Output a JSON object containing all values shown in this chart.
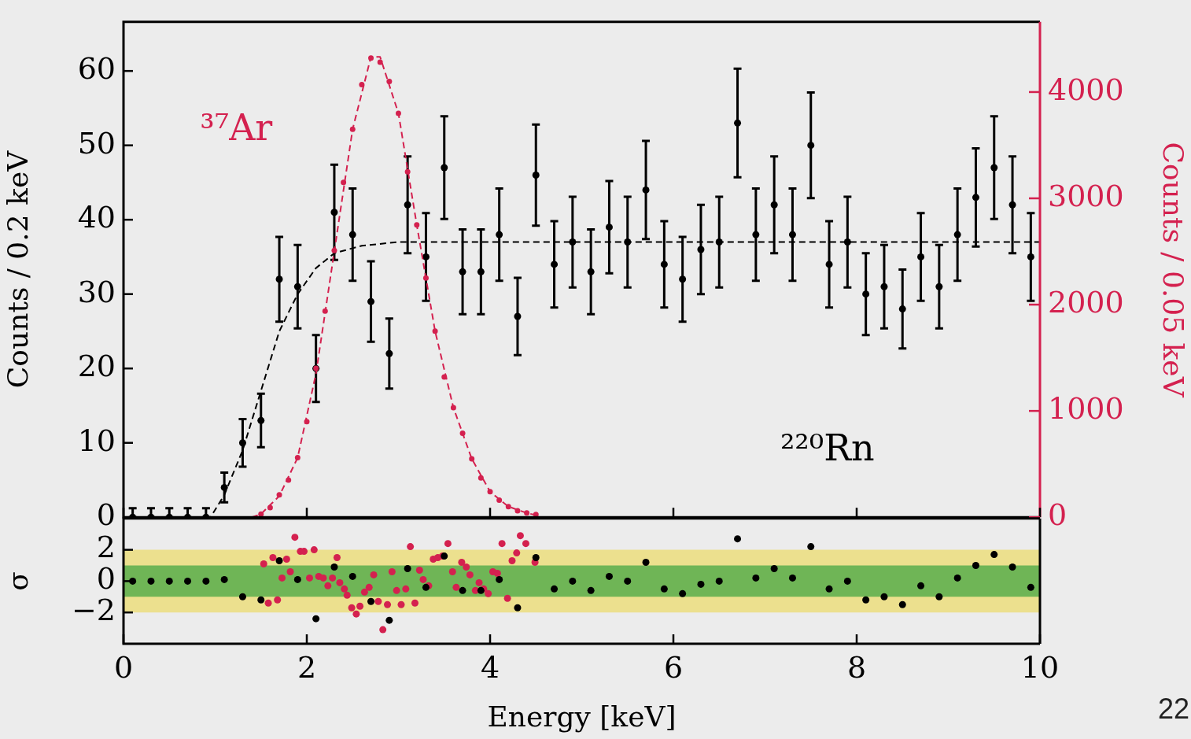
{
  "chart_data": [
    {
      "type": "scatter",
      "ylabel": "Counts / 0.2 keV",
      "y2label": "Counts / 0.05 keV",
      "xlim": [
        0,
        10
      ],
      "xticks": [
        0,
        2,
        4,
        6,
        8,
        10
      ],
      "ylim": [
        0,
        66.6
      ],
      "yticks": [
        0,
        10,
        20,
        30,
        40,
        50,
        60
      ],
      "y2lim": [
        0,
        4660
      ],
      "y2ticks": [
        0,
        1000,
        2000,
        3000,
        4000
      ],
      "tick_labels": "y",
      "marker": "circle",
      "legend": false,
      "series": [
        {
          "name": "²²⁰Rn",
          "color": "#000000",
          "x": [
            0.1,
            0.3,
            0.5,
            0.7,
            0.9,
            1.1,
            1.3,
            1.5,
            1.7,
            1.9,
            2.1,
            2.3,
            2.5,
            2.7,
            2.9,
            3.1,
            3.3,
            3.5,
            3.7,
            3.9,
            4.1,
            4.3,
            4.5,
            4.7,
            4.9,
            5.1,
            5.3,
            5.5,
            5.7,
            5.9,
            6.1,
            6.3,
            6.5,
            6.7,
            6.9,
            7.1,
            7.3,
            7.5,
            7.7,
            7.9,
            8.1,
            8.3,
            8.5,
            8.7,
            8.9,
            9.1,
            9.3,
            9.5,
            9.7,
            9.9
          ],
          "values": [
            0,
            0,
            0,
            0,
            0,
            4,
            10,
            13,
            32,
            31,
            20,
            41,
            38,
            29,
            22,
            42,
            35,
            47,
            33,
            33,
            38,
            27,
            46,
            34,
            37,
            33,
            39,
            37,
            44,
            34,
            32,
            36,
            37,
            53,
            38,
            42,
            38,
            50,
            34,
            37,
            30,
            31,
            28,
            35,
            31,
            38,
            43,
            47,
            42,
            35
          ],
          "errors": [
            [
              0,
              1.2
            ],
            [
              0,
              1.2
            ],
            [
              0,
              1.2
            ],
            [
              0,
              1.2
            ],
            [
              0,
              1.2
            ],
            2,
            3.2,
            3.6,
            5.7,
            5.6,
            4.5,
            6.4,
            6.2,
            5.4,
            4.7,
            6.5,
            5.9,
            6.9,
            5.7,
            5.7,
            6.2,
            5.2,
            6.8,
            5.8,
            6.1,
            5.7,
            6.2,
            6.1,
            6.6,
            5.8,
            5.7,
            6,
            6.1,
            7.3,
            6.2,
            6.5,
            6.2,
            7.1,
            5.8,
            6.1,
            5.5,
            5.6,
            5.3,
            5.9,
            5.6,
            6.2,
            6.6,
            6.9,
            6.5,
            5.9
          ]
        },
        {
          "type": "line",
          "color": "#000000",
          "line_style": "dashed",
          "marker": "none",
          "x": [
            0,
            0.95,
            1.1,
            1.3,
            1.5,
            1.7,
            1.9,
            2.1,
            2.3,
            2.6,
            3.0,
            10
          ],
          "values": [
            0,
            0,
            3,
            9,
            17,
            25,
            30,
            33.5,
            35.5,
            36.5,
            37,
            37
          ]
        },
        {
          "name": "³⁷Ar",
          "color": "#d4214f",
          "axis": "y2",
          "x": [
            1.5,
            1.6,
            1.7,
            1.8,
            1.9,
            2.0,
            2.1,
            2.2,
            2.3,
            2.4,
            2.5,
            2.6,
            2.7,
            2.8,
            2.9,
            3.0,
            3.1,
            3.2,
            3.3,
            3.4,
            3.5,
            3.6,
            3.7,
            3.8,
            3.9,
            4.0,
            4.1,
            4.2,
            4.3,
            4.4,
            4.5
          ],
          "values": [
            30,
            90,
            210,
            350,
            560,
            900,
            1400,
            1940,
            2510,
            3150,
            3650,
            4070,
            4320,
            4280,
            4100,
            3800,
            3250,
            2750,
            2250,
            1750,
            1320,
            1030,
            790,
            550,
            370,
            240,
            160,
            100,
            60,
            40,
            25
          ]
        },
        {
          "type": "line",
          "color": "#d4214f",
          "axis": "y2",
          "line_style": "dashed",
          "marker": "none",
          "x": [
            1.4,
            1.5,
            1.7,
            1.9,
            2.1,
            2.3,
            2.5,
            2.7,
            2.8,
            3.0,
            3.2,
            3.4,
            3.6,
            3.8,
            4.0,
            4.2,
            4.4,
            4.5
          ],
          "values": [
            0,
            30,
            200,
            560,
            1350,
            2500,
            3650,
            4330,
            4330,
            3800,
            2750,
            1750,
            1030,
            550,
            240,
            100,
            40,
            20
          ]
        }
      ]
    },
    {
      "type": "scatter",
      "xlabel": "Energy [keV]",
      "ylabel": "σ",
      "xlim": [
        0,
        10
      ],
      "xticks": [
        0,
        2,
        4,
        6,
        8,
        10
      ],
      "ylim": [
        -4,
        4
      ],
      "yticks": [
        {
          "value": -2,
          "label": "−2"
        },
        0,
        2
      ],
      "marker": "circle",
      "legend": false,
      "bands": [
        {
          "axis": "y",
          "from": -2,
          "to": 2,
          "color": "#ece08e"
        },
        {
          "axis": "y",
          "from": -1,
          "to": 1,
          "color": "#6fb556"
        }
      ],
      "annotations": [
        "22"
      ],
      "series": [
        {
          "color": "#000000",
          "x": [
            0.1,
            0.3,
            0.5,
            0.7,
            0.9,
            1.1,
            1.3,
            1.5,
            1.7,
            1.9,
            2.1,
            2.3,
            2.5,
            2.7,
            2.9,
            3.1,
            3.3,
            3.5,
            3.7,
            3.9,
            4.1,
            4.3,
            4.5,
            4.7,
            4.9,
            5.1,
            5.3,
            5.5,
            5.7,
            5.9,
            6.1,
            6.3,
            6.5,
            6.7,
            6.9,
            7.1,
            7.3,
            7.5,
            7.7,
            7.9,
            8.1,
            8.3,
            8.5,
            8.7,
            8.9,
            9.1,
            9.3,
            9.5,
            9.7,
            9.9
          ],
          "values": [
            0,
            0,
            0,
            0,
            0,
            0.1,
            -1,
            -1.2,
            1.3,
            0.1,
            -2.4,
            0.9,
            0.3,
            -1.3,
            -2.5,
            0.8,
            -0.4,
            1.6,
            -0.6,
            -0.6,
            0.1,
            -1.7,
            1.5,
            -0.5,
            0,
            -0.6,
            0.3,
            0,
            1.2,
            -0.5,
            -0.8,
            -0.2,
            0,
            2.7,
            0.2,
            0.8,
            0.2,
            2.2,
            -0.5,
            0,
            -1.2,
            -1,
            -1.5,
            -0.3,
            -1,
            0.2,
            1,
            1.7,
            0.9,
            -0.4
          ]
        },
        {
          "color": "#d4214f",
          "x": [
            1.53,
            1.58,
            1.63,
            1.68,
            1.73,
            1.78,
            1.82,
            1.87,
            1.93,
            1.97,
            2.03,
            2.08,
            2.13,
            2.18,
            2.23,
            2.28,
            2.33,
            2.36,
            2.41,
            2.44,
            2.49,
            2.54,
            2.58,
            2.63,
            2.68,
            2.73,
            2.78,
            2.83,
            2.88,
            2.93,
            2.98,
            3.03,
            3.08,
            3.13,
            3.18,
            3.23,
            3.27,
            3.33,
            3.38,
            3.43,
            3.48,
            3.54,
            3.59,
            3.63,
            3.69,
            3.74,
            3.78,
            3.84,
            3.88,
            3.93,
            3.98,
            4.03,
            4.08,
            4.13,
            4.19,
            4.24,
            4.29,
            4.33,
            4.39,
            4.49
          ],
          "values": [
            1.1,
            -1.4,
            1.5,
            -1.2,
            0.2,
            1.4,
            0.6,
            2.8,
            1.9,
            1.9,
            0.2,
            2,
            0.3,
            0.2,
            -0.3,
            0.2,
            1.5,
            -0.1,
            -0.5,
            -0.9,
            -1.7,
            -2.1,
            -1.6,
            -0.7,
            -0.4,
            0.4,
            -1.3,
            -3.1,
            -1.5,
            0.6,
            -0.6,
            -1.5,
            -0.5,
            2.2,
            -1.4,
            0.7,
            0.1,
            -0.3,
            1.4,
            1.5,
            1.6,
            2.4,
            0.6,
            -0.4,
            1.2,
            0.9,
            0.4,
            -0.6,
            -0.1,
            -0.5,
            -0.8,
            0.6,
            0.5,
            2.4,
            -1.1,
            1.3,
            1.8,
            2.9,
            2.4,
            1.2
          ]
        }
      ]
    }
  ]
}
